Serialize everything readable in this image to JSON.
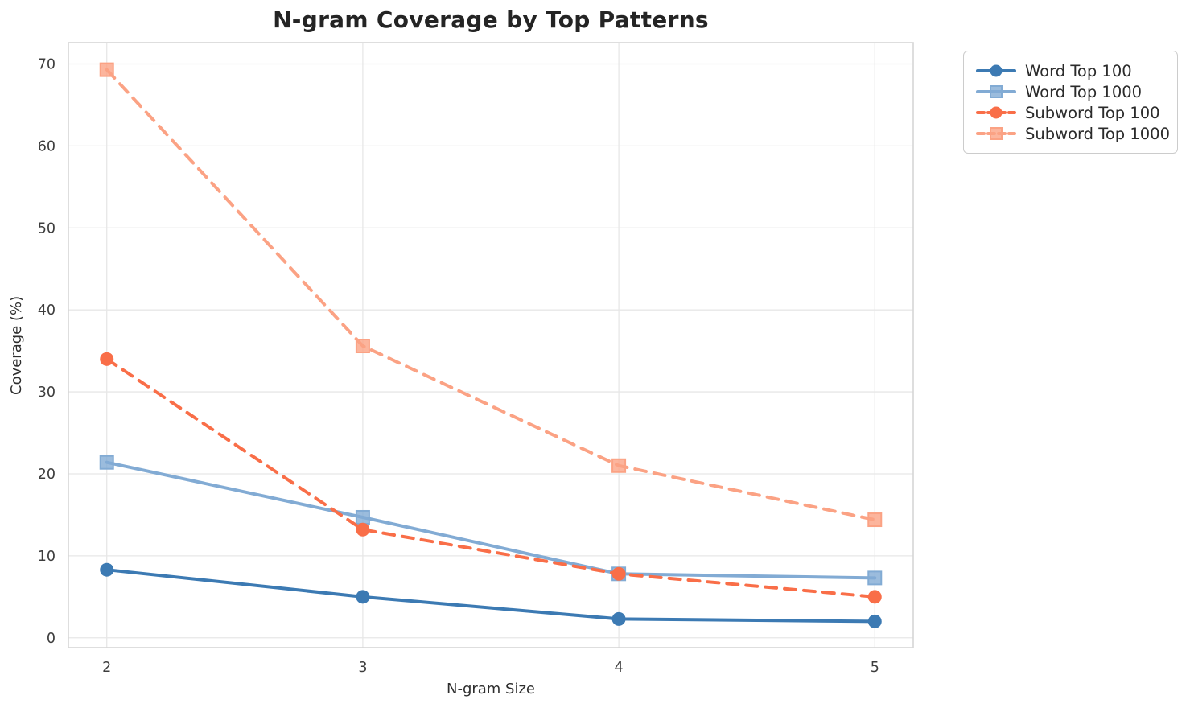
{
  "chart_data": {
    "type": "line",
    "title": "N-gram Coverage by Top Patterns",
    "xlabel": "N-gram Size",
    "ylabel": "Coverage (%)",
    "x": [
      2,
      3,
      4,
      5
    ],
    "xticks": [
      2,
      3,
      4,
      5
    ],
    "yticks": [
      0,
      10,
      20,
      30,
      40,
      50,
      60,
      70
    ],
    "xlim": [
      1.85,
      5.15
    ],
    "ylim": [
      -1.2,
      72.6
    ],
    "grid": true,
    "legend_position": "outside-top-right",
    "series": [
      {
        "name": "Word Top 100",
        "values": [
          8.3,
          5.0,
          2.3,
          2.0
        ],
        "color": "#3C7AB3",
        "line_style": "solid",
        "marker": "circle"
      },
      {
        "name": "Word Top 1000",
        "values": [
          21.4,
          14.7,
          7.8,
          7.3
        ],
        "color": "#82ABD4",
        "line_style": "solid",
        "marker": "square"
      },
      {
        "name": "Subword Top 100",
        "values": [
          34.0,
          13.2,
          7.8,
          5.0
        ],
        "color": "#F96E48",
        "line_style": "dashed",
        "marker": "circle"
      },
      {
        "name": "Subword Top 1000",
        "values": [
          69.3,
          35.6,
          21.0,
          14.4
        ],
        "color": "#FBA284",
        "line_style": "dashed",
        "marker": "square"
      }
    ],
    "style": {
      "grid_color": "#e7e7e7",
      "spine_color": "#d6d6d6",
      "title_color": "#242424",
      "tick_color": "#3d3d3d"
    }
  }
}
